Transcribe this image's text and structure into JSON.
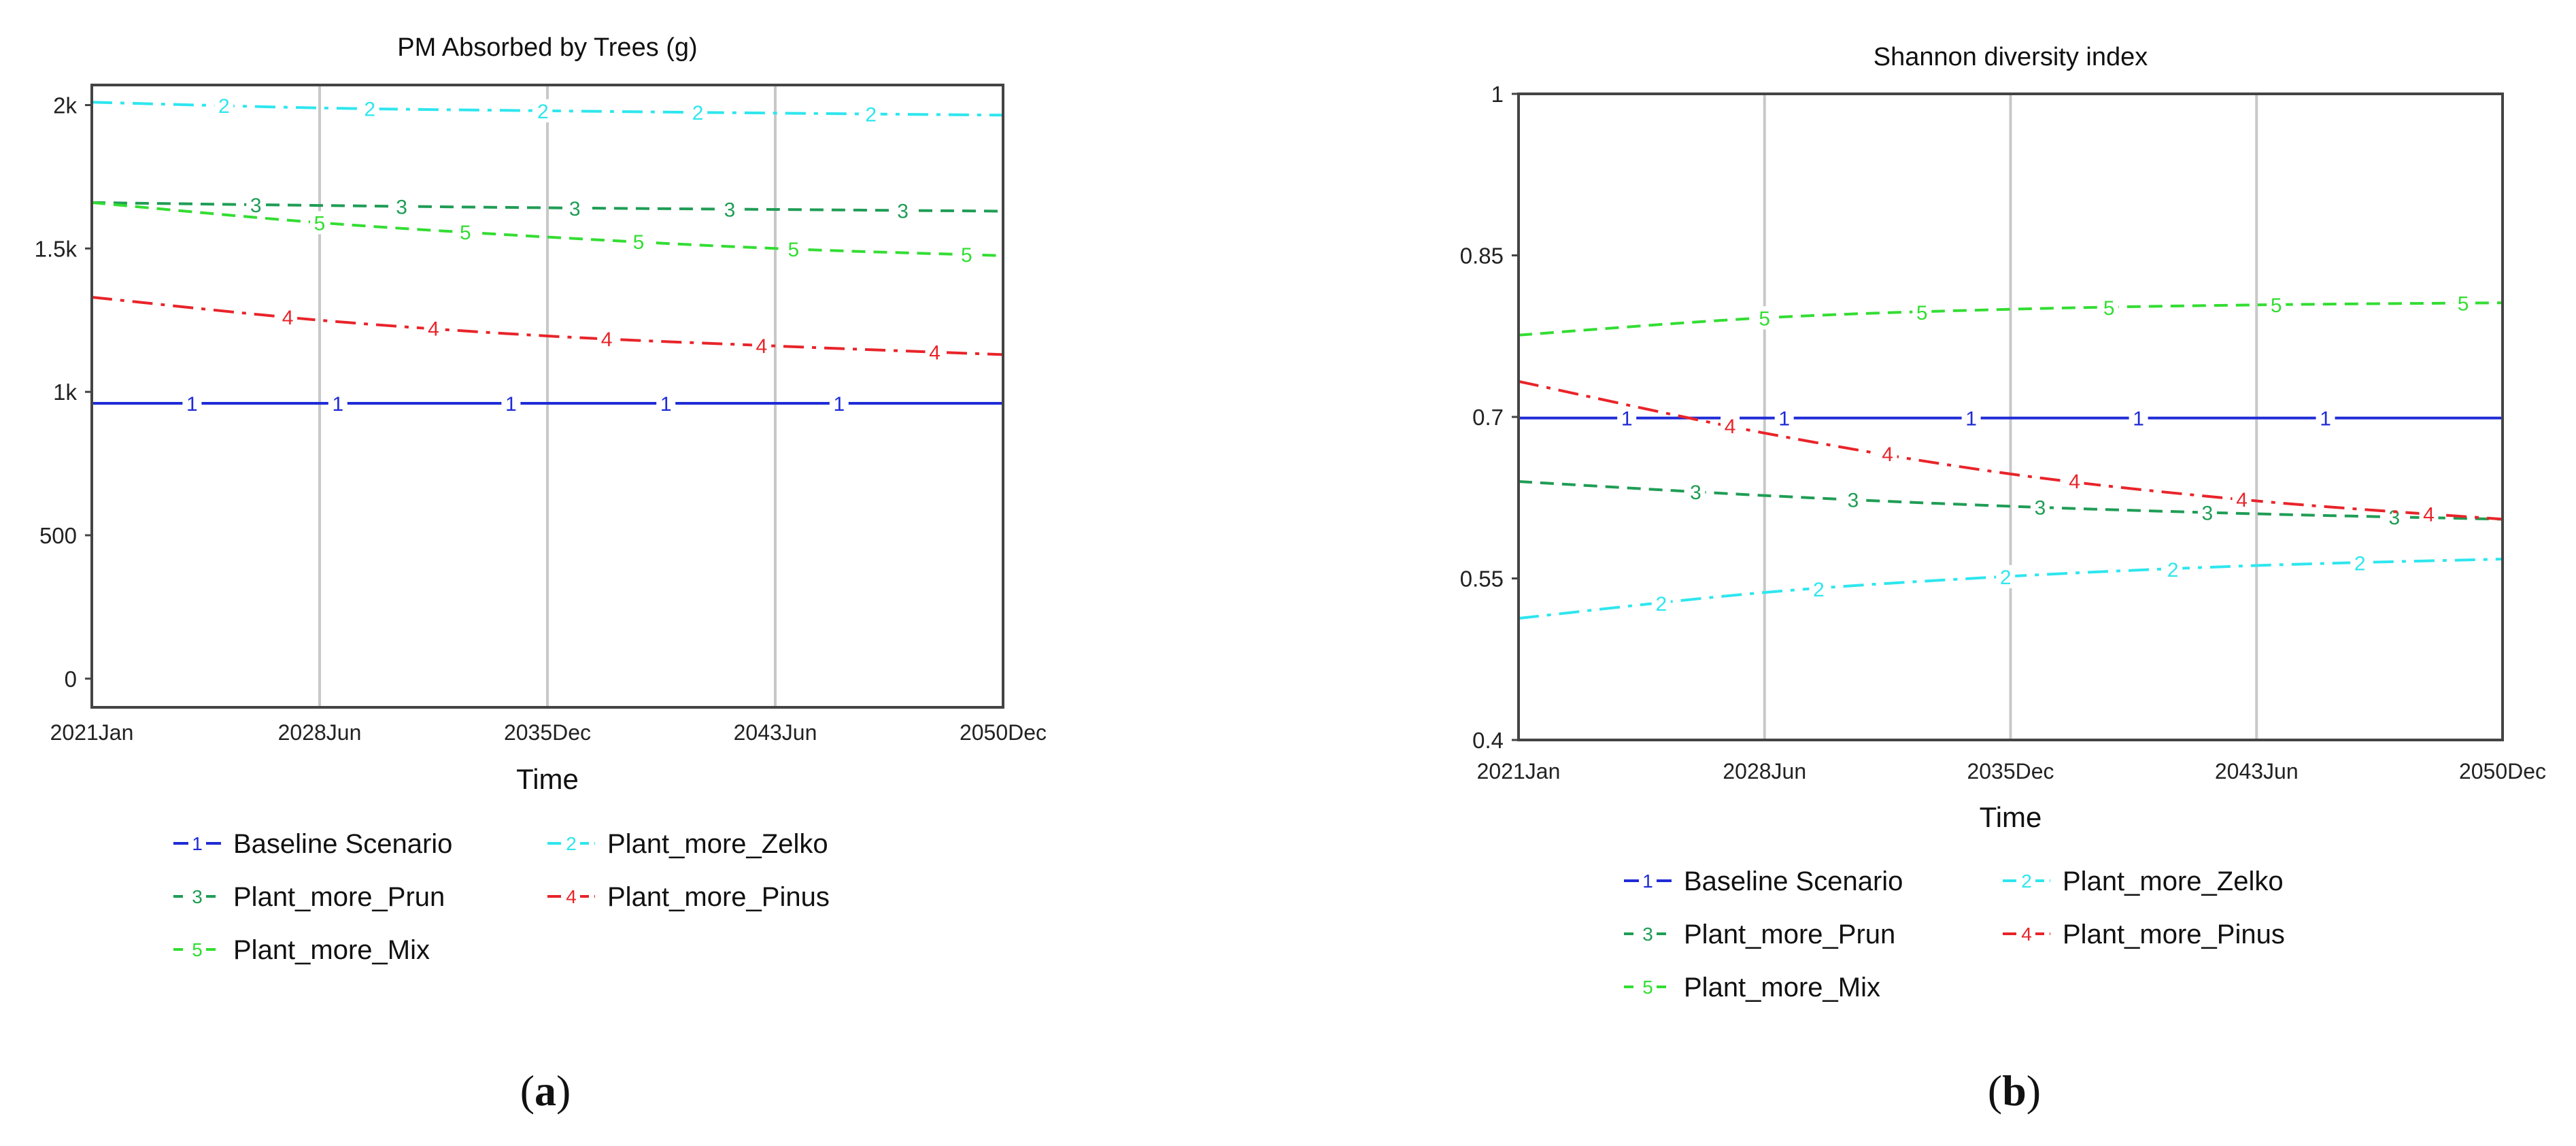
{
  "panels": [
    {
      "caption_open": "(",
      "caption_letter": "a",
      "caption_close": ")",
      "chart_data": {
        "type": "line",
        "title": "PM Absorbed by Trees (g)",
        "xlabel": "Time",
        "ylabel": "",
        "x_tick_labels": [
          "2021Jan",
          "2028Jun",
          "2035Dec",
          "2043Jun",
          "2050Dec"
        ],
        "x": [
          2021.0,
          2028.5,
          2036.0,
          2043.5,
          2051.0
        ],
        "xlim": [
          2021.0,
          2051.0
        ],
        "ylim": [
          -100,
          2070
        ],
        "y_ticks": [
          0,
          500,
          1000,
          1500,
          2000
        ],
        "y_tick_labels": [
          "0",
          "500",
          "1k",
          "1.5k",
          "2k"
        ],
        "grid": "vertical",
        "legend_position": "bottom",
        "series": [
          {
            "name": "Baseline Scenario",
            "marker": "1",
            "color": "#1f2bd6",
            "dash": "solid",
            "values": [
              960,
              960,
              960,
              960,
              960
            ]
          },
          {
            "name": "Plant_more_Zelko",
            "marker": "2",
            "color": "#2ee6ee",
            "dash": "dashdot",
            "values": [
              2010,
              1990,
              1980,
              1972,
              1965
            ]
          },
          {
            "name": "Plant_more_Prun",
            "marker": "3",
            "color": "#1f9d55",
            "dash": "dash",
            "values": [
              1660,
              1650,
              1642,
              1636,
              1630
            ]
          },
          {
            "name": "Plant_more_Pinus",
            "marker": "4",
            "color": "#e8242a",
            "dash": "dashdot",
            "values": [
              1330,
              1250,
              1195,
              1160,
              1130
            ]
          },
          {
            "name": "Plant_more_Mix",
            "marker": "5",
            "color": "#33dd33",
            "dash": "dash",
            "values": [
              1660,
              1590,
              1540,
              1500,
              1475
            ]
          }
        ]
      }
    },
    {
      "caption_open": "(",
      "caption_letter": "b",
      "caption_close": ")",
      "chart_data": {
        "type": "line",
        "title": "Shannon diversity index",
        "xlabel": "Time",
        "ylabel": "",
        "x_tick_labels": [
          "2021Jan",
          "2028Jun",
          "2035Dec",
          "2043Jun",
          "2050Dec"
        ],
        "x": [
          2021.0,
          2028.5,
          2036.0,
          2043.5,
          2051.0
        ],
        "xlim": [
          2021.0,
          2051.0
        ],
        "ylim": [
          0.4,
          1.0
        ],
        "y_ticks": [
          0.4,
          0.55,
          0.7,
          0.85,
          1.0
        ],
        "y_tick_labels": [
          "0.4",
          "0.55",
          "0.7",
          "0.85",
          "1"
        ],
        "grid": "vertical",
        "legend_position": "bottom",
        "series": [
          {
            "name": "Baseline Scenario",
            "marker": "1",
            "color": "#1f2bd6",
            "dash": "solid",
            "values": [
              0.699,
              0.699,
              0.699,
              0.699,
              0.699
            ]
          },
          {
            "name": "Plant_more_Zelko",
            "marker": "2",
            "color": "#2ee6ee",
            "dash": "dashdot",
            "values": [
              0.513,
              0.537,
              0.552,
              0.562,
              0.568
            ]
          },
          {
            "name": "Plant_more_Prun",
            "marker": "3",
            "color": "#1f9d55",
            "dash": "dash",
            "values": [
              0.64,
              0.627,
              0.617,
              0.61,
              0.605
            ]
          },
          {
            "name": "Plant_more_Pinus",
            "marker": "4",
            "color": "#e8242a",
            "dash": "dashdot",
            "values": [
              0.733,
              0.685,
              0.647,
              0.622,
              0.605
            ]
          },
          {
            "name": "Plant_more_Mix",
            "marker": "5",
            "color": "#33dd33",
            "dash": "dash",
            "values": [
              0.776,
              0.792,
              0.8,
              0.804,
              0.806
            ]
          }
        ]
      }
    }
  ]
}
